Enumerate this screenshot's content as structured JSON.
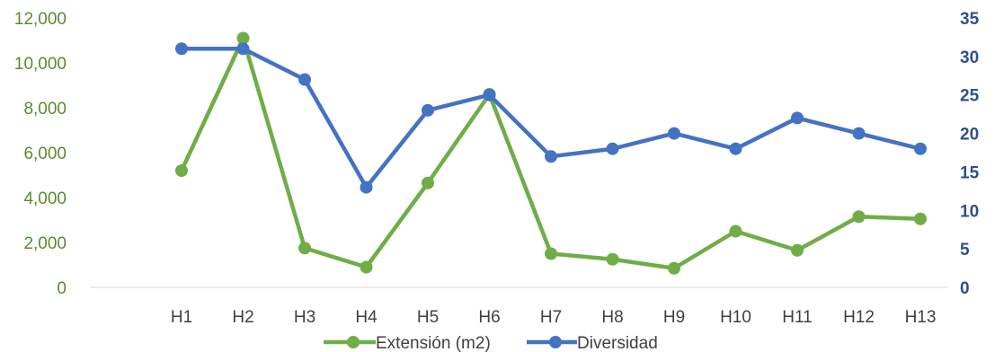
{
  "chart_data": {
    "type": "line",
    "categories": [
      "H1",
      "H2",
      "H3",
      "H4",
      "H5",
      "H6",
      "H7",
      "H8",
      "H9",
      "H10",
      "H11",
      "H12",
      "H13"
    ],
    "series": [
      {
        "name": "Extensión (m2)",
        "axis": "left",
        "color": "#70ad47",
        "values": [
          5200,
          11100,
          1750,
          900,
          4650,
          8600,
          1500,
          1250,
          850,
          2500,
          1650,
          3150,
          3050
        ]
      },
      {
        "name": "Diversidad",
        "axis": "right",
        "color": "#4472c4",
        "values": [
          31,
          31,
          27,
          13,
          23,
          25,
          17,
          18,
          20,
          18,
          22,
          20,
          18
        ]
      }
    ],
    "y_left": {
      "ylim": [
        0,
        12000
      ],
      "ticks": [
        "0",
        "2,000",
        "4,000",
        "6,000",
        "8,000",
        "10,000",
        "12,000"
      ],
      "tick_values": [
        0,
        2000,
        4000,
        6000,
        8000,
        10000,
        12000
      ]
    },
    "y_right": {
      "ylim": [
        0,
        35
      ],
      "ticks": [
        "0",
        "5",
        "10",
        "15",
        "20",
        "25",
        "30",
        "35"
      ],
      "tick_values": [
        0,
        5,
        10,
        15,
        20,
        25,
        30,
        35
      ]
    },
    "legend": {
      "position": "bottom"
    },
    "grid": false
  }
}
